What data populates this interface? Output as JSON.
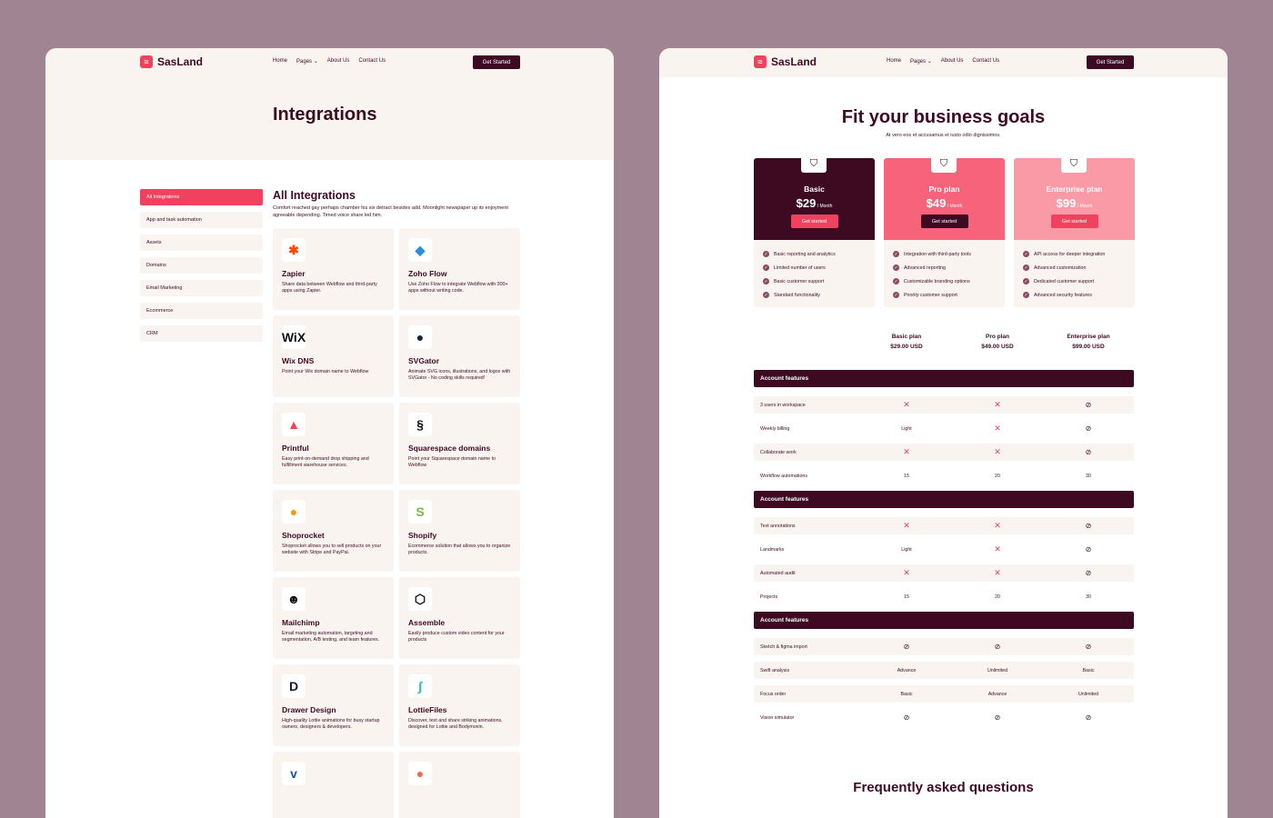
{
  "brand": {
    "name": "SasLand",
    "logo_glyph": "≈",
    "accent": "#f0425e",
    "dark": "#3d0a22",
    "cream": "#faf4f1",
    "bg": "#a08492"
  },
  "nav": {
    "items": [
      "Home",
      "Pages ⌄",
      "About Us",
      "Contact Us"
    ],
    "cta": "Get Started"
  },
  "integrations_page": {
    "title": "Integrations",
    "sidebar": [
      "All Integrations",
      "App and task automation",
      "Assets",
      "Domains",
      "Email Marketing",
      "Ecommerce",
      "CRM"
    ],
    "heading": "All Integrations",
    "lead": "Comfort reached gay perhaps chamber his six detract besides add. Moonlight newspaper up its enjoyment agreeable depending. Timed voice share led him.",
    "cards": [
      {
        "name": "Zapier",
        "desc": "Share data between Webflow and third-party apps using Zapier.",
        "icon": "zapier-icon",
        "glyph": "✱",
        "color": "#ff4a00"
      },
      {
        "name": "Zoho Flow",
        "desc": "Use Zoho Flow to integrate Webflow with 300+ apps without writing code.",
        "icon": "zoho-flow-icon",
        "glyph": "◆",
        "color": "#2a8fe0"
      },
      {
        "name": "Wix DNS",
        "desc": "Point your Wix domain name to Webflow",
        "icon": "wix-icon",
        "glyph": "WiX",
        "color": "#111111"
      },
      {
        "name": "SVGator",
        "desc": "Animate SVG icons, illustrations, and logos with SVGator - No coding skills required!",
        "icon": "svgator-icon",
        "glyph": "●",
        "color": "#14233a"
      },
      {
        "name": "Printful",
        "desc": "Easy print-on-demand drop shipping and fulfillment warehouse services.",
        "icon": "printful-icon",
        "glyph": "▲",
        "color": "#e8474c"
      },
      {
        "name": "Squarespace domains",
        "desc": "Point your Squarespace domain name to Webflow",
        "icon": "squarespace-icon",
        "glyph": "§",
        "color": "#111111"
      },
      {
        "name": "Shoprocket",
        "desc": "Shoprocket allows you to sell products on your website with Stripe and PayPal.",
        "icon": "shoprocket-icon",
        "glyph": "●",
        "color": "#f39c12"
      },
      {
        "name": "Shopify",
        "desc": "Ecommerce solution that allows you to organize products.",
        "icon": "shopify-icon",
        "glyph": "S",
        "color": "#7ab648"
      },
      {
        "name": "Mailchimp",
        "desc": "Email marketing automation, targeting and segmentation, A/B testing, and team features.",
        "icon": "mailchimp-icon",
        "glyph": "☻",
        "color": "#111111"
      },
      {
        "name": "Assemble",
        "desc": "Easily produce custom video content for your products",
        "icon": "assemble-icon",
        "glyph": "⬡",
        "color": "#111111"
      },
      {
        "name": "Drawer Design",
        "desc": "High-quality Lottie animations for busy startup owners, designers & developers.",
        "icon": "drawer-design-icon",
        "glyph": "D",
        "color": "#0f1b2d"
      },
      {
        "name": "LottieFiles",
        "desc": "Discover, test and share striking animations, designed for Lottie and Bodymovin.",
        "icon": "lottiefiles-icon",
        "glyph": "∫",
        "color": "#1ec6c6"
      },
      {
        "name": "",
        "desc": "",
        "icon": "vimeo-icon",
        "glyph": "v",
        "color": "#1e4fb5"
      },
      {
        "name": "",
        "desc": "",
        "icon": "hubspot-icon",
        "glyph": "●",
        "color": "#f26a42"
      }
    ]
  },
  "pricing_page": {
    "title": "Fit your business goals",
    "subtitle": "At vero eos et accusamus et iusto odio dignissimos.",
    "plans": [
      {
        "name": "Basic",
        "price": "$29",
        "period": " / Month",
        "button": "Get started",
        "bg": "#3d0a22",
        "btn_bg": "#f0425e",
        "features": [
          "Basic reporting and analytics",
          "Limited number of users",
          "Basic customer support",
          "Standard functionality"
        ]
      },
      {
        "name": "Pro plan",
        "price": "$49",
        "period": " / Month",
        "button": "Get started",
        "bg": "#f7637a",
        "btn_bg": "#3d0a22",
        "features": [
          "Integration with third-party tools",
          "Advanced reporting",
          "Customizable branding options",
          "Priority customer support"
        ]
      },
      {
        "name": "Enterprise plan",
        "price": "$99",
        "period": " / Month",
        "button": "Get started",
        "bg": "#f99aa6",
        "btn_bg": "#f0425e",
        "features": [
          "API access for deeper integration",
          "Advanced customization",
          "Dedicated customer support",
          "Advanced security features"
        ]
      }
    ],
    "compare_header": [
      {
        "plan": "Basic plan",
        "price": "$29.00 USD"
      },
      {
        "plan": "Pro plan",
        "price": "$49.00 USD"
      },
      {
        "plan": "Enterprise plan",
        "price": "$99.00 USD"
      }
    ],
    "sections": [
      {
        "title": "Account features",
        "rows": [
          [
            "3 users in workspace",
            "x",
            "x",
            "check"
          ],
          [
            "Weekly billing",
            "Light",
            "x",
            "check"
          ],
          [
            "Collaborate work",
            "x",
            "x",
            "check"
          ],
          [
            "Workflow automations",
            "15",
            "20",
            "30"
          ]
        ]
      },
      {
        "title": "Account features",
        "rows": [
          [
            "Text annotations",
            "x",
            "x",
            "check"
          ],
          [
            "Landmarks",
            "Light",
            "x",
            "check"
          ],
          [
            "Automated audit",
            "x",
            "x",
            "check"
          ],
          [
            "Projects",
            "15",
            "20",
            "30"
          ]
        ]
      },
      {
        "title": "Account features",
        "rows": [
          [
            "Sketch & figma import",
            "check",
            "check",
            "check"
          ],
          [
            "Swift analysis",
            "Advance",
            "Unlimited",
            "Basic"
          ],
          [
            "Focus order",
            "Basic",
            "Advance",
            "Unlimited"
          ],
          [
            "Vision simulator",
            "check",
            "check",
            "check"
          ]
        ]
      }
    ],
    "faq_title": "Frequently asked questions"
  }
}
